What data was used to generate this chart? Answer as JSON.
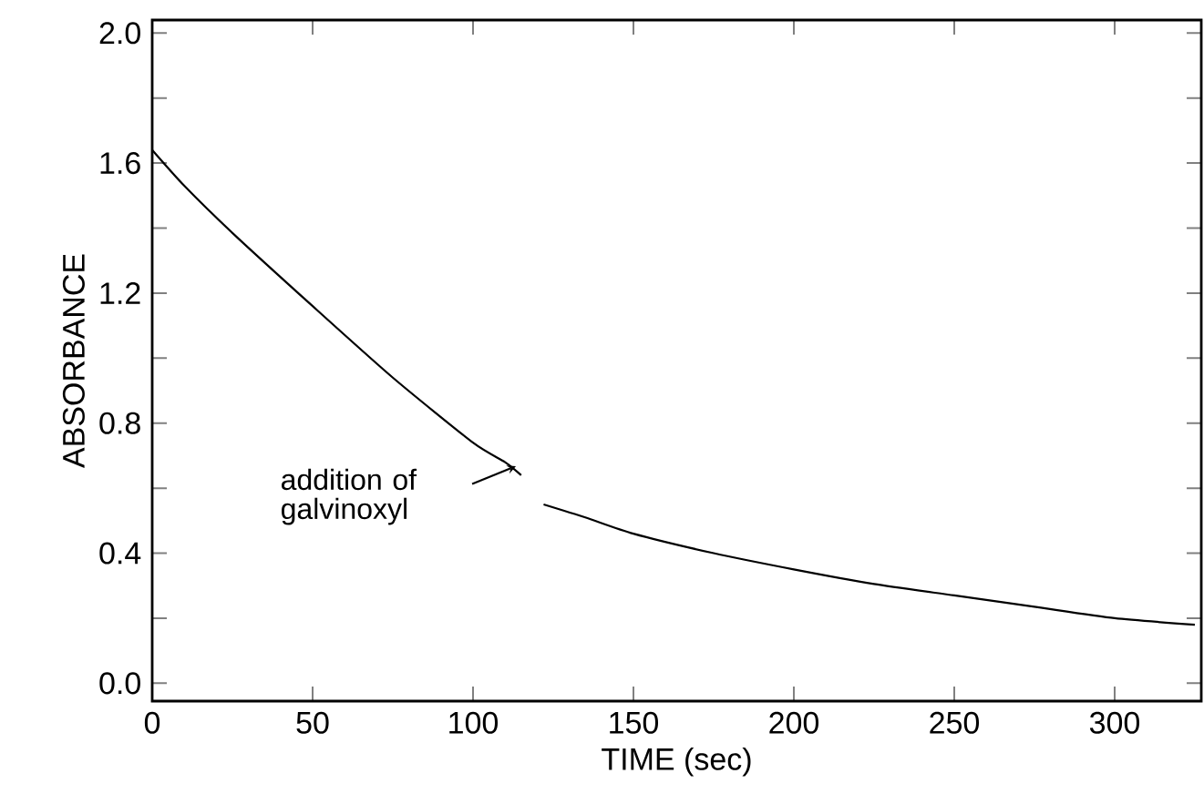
{
  "chart_data": {
    "type": "line",
    "xlabel": "TIME (sec)",
    "ylabel": "ABSORBANCE",
    "x": [
      0,
      10,
      25,
      50,
      75,
      100,
      110,
      115,
      118,
      122,
      135,
      150,
      175,
      200,
      225,
      250,
      275,
      300,
      325
    ],
    "series": [
      {
        "color": "#000000",
        "values": [
          1.64,
          1.53,
          1.385,
          1.16,
          0.94,
          0.74,
          0.68,
          0.64,
          null,
          0.55,
          0.51,
          0.46,
          0.4,
          0.35,
          0.305,
          0.27,
          0.235,
          0.2,
          0.18
        ]
      }
    ],
    "xlim": [
      0,
      327
    ],
    "ylim": [
      -0.055,
      2.04
    ],
    "xticks": [
      0,
      50,
      100,
      150,
      200,
      250,
      300
    ],
    "yticks": [
      {
        "value": 0,
        "label": "0.0"
      },
      {
        "value": 0.2,
        "label": null
      },
      {
        "value": 0.4,
        "label": "0.4"
      },
      {
        "value": 0.6,
        "label": null
      },
      {
        "value": 0.8,
        "label": "0.8"
      },
      {
        "value": 1.0,
        "label": null
      },
      {
        "value": 1.2,
        "label": "1.2"
      },
      {
        "value": 1.4,
        "label": null
      },
      {
        "value": 1.6,
        "label": "1.6"
      },
      {
        "value": 1.8,
        "label": null
      },
      {
        "value": 2.0,
        "label": "2.0"
      }
    ],
    "annotations": [
      "addition of galvinoxyl"
    ],
    "grid": false,
    "marker": "none",
    "line_style": "solid"
  }
}
